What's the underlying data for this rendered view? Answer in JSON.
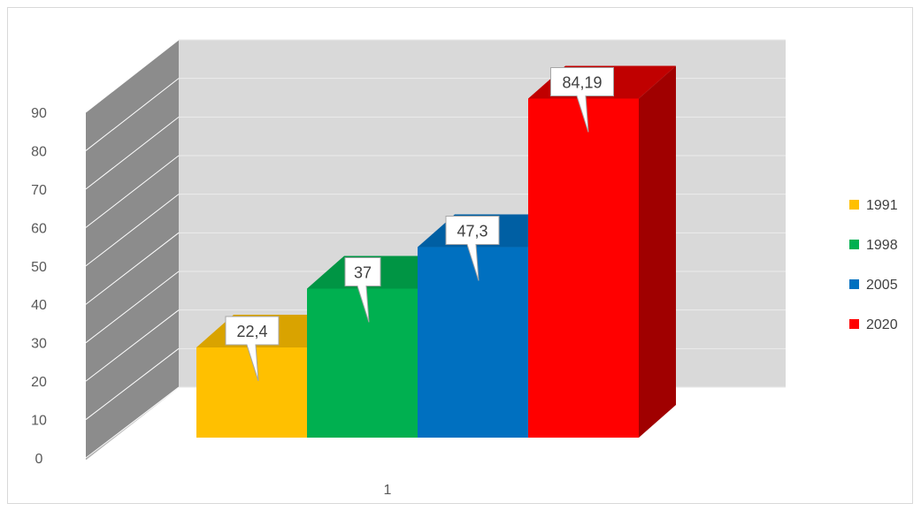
{
  "chart_data": {
    "type": "bar",
    "style": "3d-column",
    "categories": [
      "1"
    ],
    "series": [
      {
        "name": "1991",
        "values": [
          22.4
        ],
        "label": "22,4",
        "color": "#FFC000",
        "side": "#BF9000",
        "top": "#D9A300"
      },
      {
        "name": "1998",
        "values": [
          37
        ],
        "label": "37",
        "color": "#00B050",
        "side": "#00843C",
        "top": "#009544"
      },
      {
        "name": "2005",
        "values": [
          47.3
        ],
        "label": "47,3",
        "color": "#0070C0",
        "side": "#005490",
        "top": "#005FA3"
      },
      {
        "name": "2020",
        "values": [
          84.19
        ],
        "label": "84,19",
        "color": "#FF0000",
        "side": "#A00000",
        "top": "#C00000"
      }
    ],
    "y_ticks": [
      "0",
      "10",
      "20",
      "30",
      "40",
      "50",
      "60",
      "70",
      "80",
      "90"
    ],
    "ylim": [
      0,
      90
    ],
    "grid": true,
    "legend": "right",
    "title": "",
    "xlabel": "",
    "ylabel": ""
  }
}
